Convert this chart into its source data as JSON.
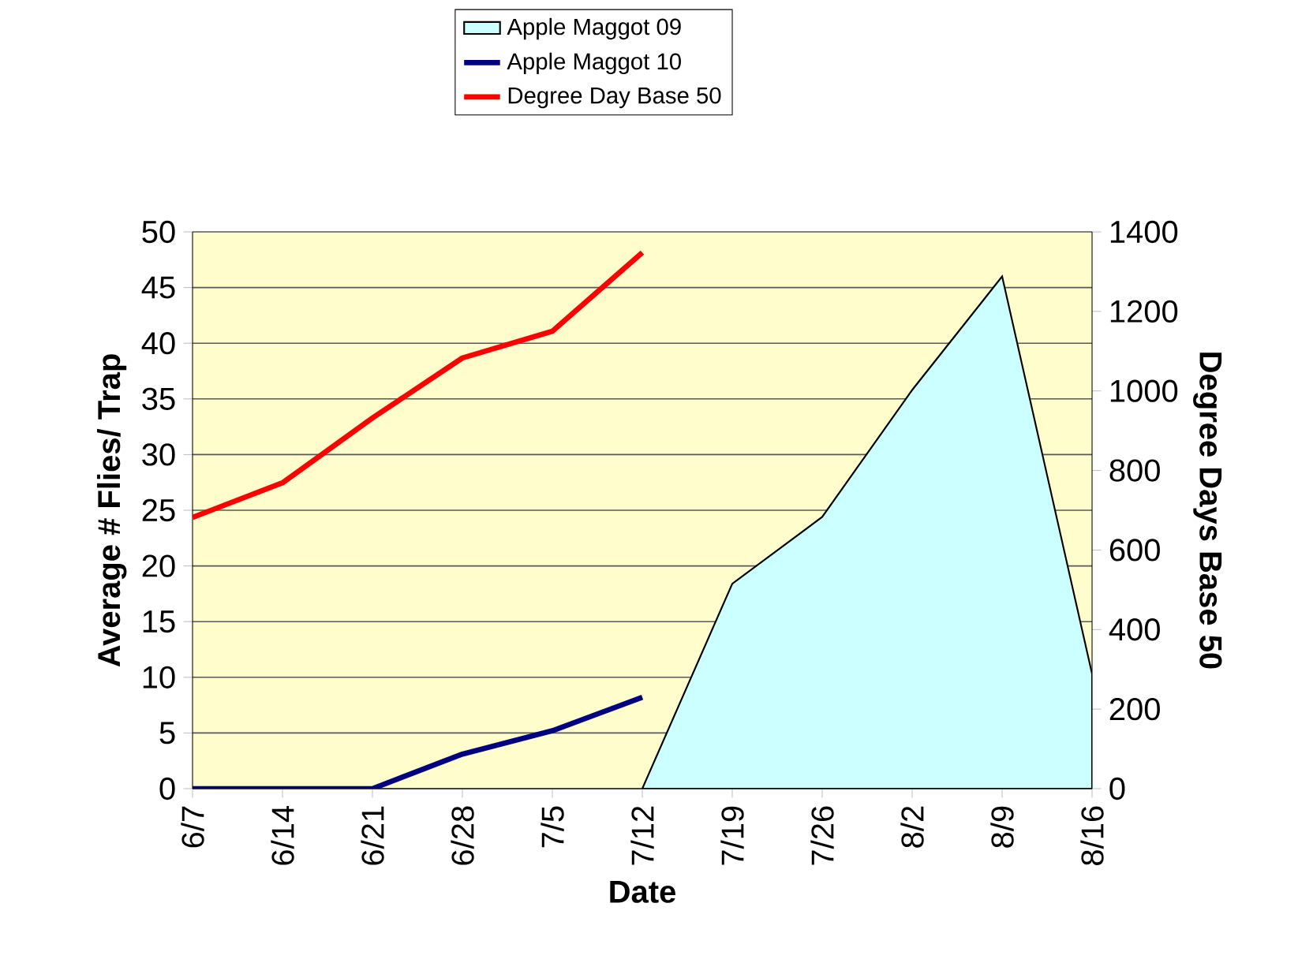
{
  "chart_data": {
    "type": "line",
    "xlabel": "Date",
    "ylabel": "Average # Flies/ Trap",
    "y2label": "Degree Days Base 50",
    "categories": [
      "6/7",
      "6/14",
      "6/21",
      "6/28",
      "7/5",
      "7/12",
      "7/19",
      "7/26",
      "8/2",
      "8/9",
      "8/16"
    ],
    "series": [
      {
        "name": "Apple Maggot 09",
        "type": "area",
        "color": "#ccffff",
        "values": [
          null,
          null,
          null,
          null,
          null,
          0,
          18.4,
          24.4,
          35.8,
          46,
          10.3
        ]
      },
      {
        "name": "Apple Maggot 10",
        "color": "#000080",
        "values": [
          0,
          0,
          0,
          3.1,
          5.2,
          8.2,
          null,
          null,
          null,
          null,
          null
        ]
      },
      {
        "name": "Degree Day Base 50",
        "color": "#ff0000",
        "axis": "y2",
        "values": [
          682,
          769,
          932,
          1083,
          1150,
          1348,
          null,
          null,
          null,
          null,
          null
        ]
      }
    ],
    "ylim": [
      0,
      50
    ],
    "yticks": [
      0,
      5,
      10,
      15,
      20,
      25,
      30,
      35,
      40,
      45,
      50
    ],
    "y2lim": [
      0,
      1400
    ],
    "y2ticks": [
      0,
      200,
      400,
      600,
      800,
      1000,
      1200,
      1400
    ],
    "grid": "y",
    "legend": "top"
  }
}
